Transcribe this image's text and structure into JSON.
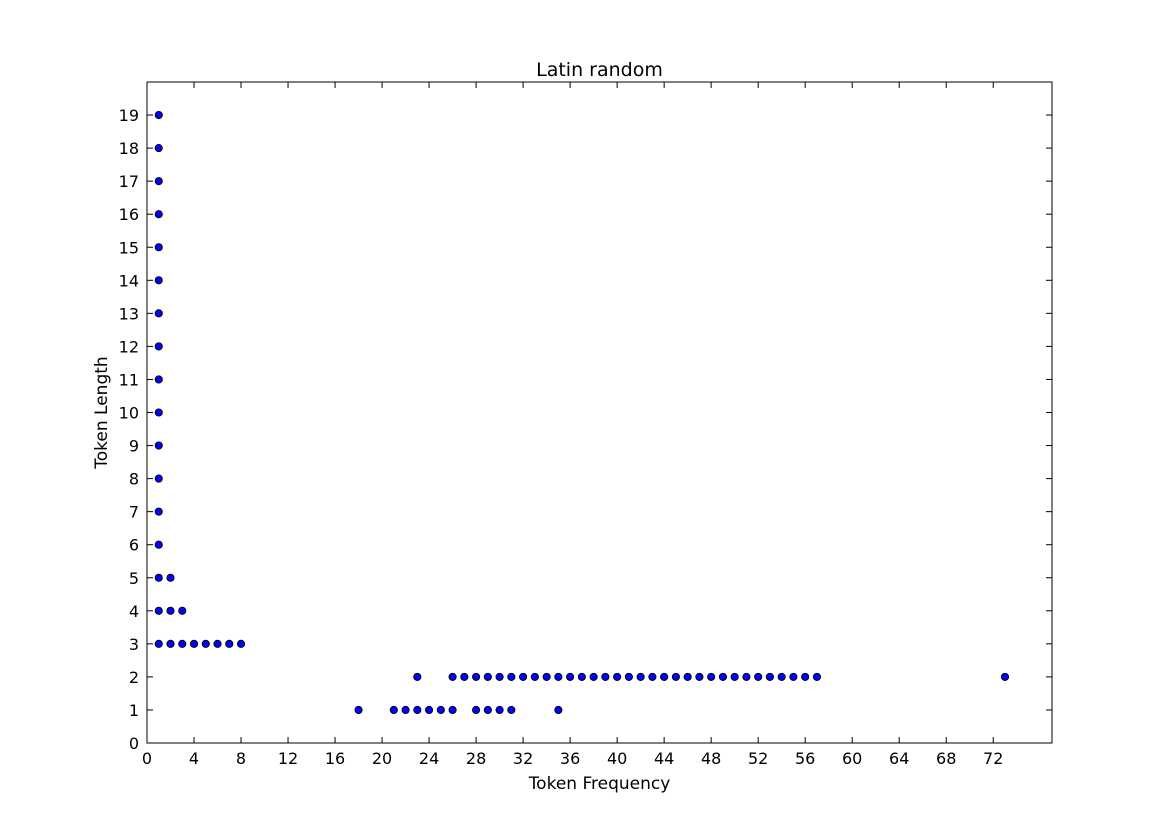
{
  "chart_data": {
    "type": "scatter",
    "title": "Latin random",
    "xlabel": "Token Frequency",
    "ylabel": "Token Length",
    "xlim": [
      0,
      77
    ],
    "ylim": [
      0,
      20
    ],
    "xticks": [
      0,
      4,
      8,
      12,
      16,
      20,
      24,
      28,
      32,
      36,
      40,
      44,
      48,
      52,
      56,
      60,
      64,
      68,
      72
    ],
    "xtick_labels": [
      "0",
      "4",
      "8",
      "12",
      "16",
      "20",
      "24",
      "28",
      "32",
      "36",
      "40",
      "44",
      "48",
      "52",
      "56",
      "60",
      "64",
      "68",
      "72"
    ],
    "yticks": [
      0,
      1,
      2,
      3,
      4,
      5,
      6,
      7,
      8,
      9,
      10,
      11,
      12,
      13,
      14,
      15,
      16,
      17,
      18,
      19
    ],
    "ytick_labels": [
      "0",
      "1",
      "2",
      "3",
      "4",
      "5",
      "6",
      "7",
      "8",
      "9",
      "10",
      "11",
      "12",
      "13",
      "14",
      "15",
      "16",
      "17",
      "18",
      "19"
    ],
    "grid": false,
    "marker_color": "#0000ff",
    "marker_edge_color": "#000000",
    "points": [
      {
        "x": 1,
        "y": 19
      },
      {
        "x": 1,
        "y": 18
      },
      {
        "x": 1,
        "y": 17
      },
      {
        "x": 1,
        "y": 16
      },
      {
        "x": 1,
        "y": 15
      },
      {
        "x": 1,
        "y": 14
      },
      {
        "x": 1,
        "y": 13
      },
      {
        "x": 1,
        "y": 12
      },
      {
        "x": 1,
        "y": 11
      },
      {
        "x": 1,
        "y": 10
      },
      {
        "x": 1,
        "y": 9
      },
      {
        "x": 1,
        "y": 8
      },
      {
        "x": 1,
        "y": 7
      },
      {
        "x": 1,
        "y": 6
      },
      {
        "x": 1,
        "y": 5
      },
      {
        "x": 2,
        "y": 5
      },
      {
        "x": 1,
        "y": 4
      },
      {
        "x": 2,
        "y": 4
      },
      {
        "x": 3,
        "y": 4
      },
      {
        "x": 1,
        "y": 3
      },
      {
        "x": 2,
        "y": 3
      },
      {
        "x": 3,
        "y": 3
      },
      {
        "x": 4,
        "y": 3
      },
      {
        "x": 5,
        "y": 3
      },
      {
        "x": 6,
        "y": 3
      },
      {
        "x": 7,
        "y": 3
      },
      {
        "x": 8,
        "y": 3
      },
      {
        "x": 23,
        "y": 2
      },
      {
        "x": 26,
        "y": 2
      },
      {
        "x": 27,
        "y": 2
      },
      {
        "x": 28,
        "y": 2
      },
      {
        "x": 29,
        "y": 2
      },
      {
        "x": 30,
        "y": 2
      },
      {
        "x": 31,
        "y": 2
      },
      {
        "x": 32,
        "y": 2
      },
      {
        "x": 33,
        "y": 2
      },
      {
        "x": 34,
        "y": 2
      },
      {
        "x": 35,
        "y": 2
      },
      {
        "x": 36,
        "y": 2
      },
      {
        "x": 37,
        "y": 2
      },
      {
        "x": 38,
        "y": 2
      },
      {
        "x": 39,
        "y": 2
      },
      {
        "x": 40,
        "y": 2
      },
      {
        "x": 41,
        "y": 2
      },
      {
        "x": 42,
        "y": 2
      },
      {
        "x": 43,
        "y": 2
      },
      {
        "x": 44,
        "y": 2
      },
      {
        "x": 45,
        "y": 2
      },
      {
        "x": 46,
        "y": 2
      },
      {
        "x": 47,
        "y": 2
      },
      {
        "x": 48,
        "y": 2
      },
      {
        "x": 49,
        "y": 2
      },
      {
        "x": 50,
        "y": 2
      },
      {
        "x": 51,
        "y": 2
      },
      {
        "x": 52,
        "y": 2
      },
      {
        "x": 53,
        "y": 2
      },
      {
        "x": 54,
        "y": 2
      },
      {
        "x": 55,
        "y": 2
      },
      {
        "x": 56,
        "y": 2
      },
      {
        "x": 57,
        "y": 2
      },
      {
        "x": 73,
        "y": 2
      },
      {
        "x": 18,
        "y": 1
      },
      {
        "x": 21,
        "y": 1
      },
      {
        "x": 22,
        "y": 1
      },
      {
        "x": 23,
        "y": 1
      },
      {
        "x": 24,
        "y": 1
      },
      {
        "x": 25,
        "y": 1
      },
      {
        "x": 26,
        "y": 1
      },
      {
        "x": 28,
        "y": 1
      },
      {
        "x": 29,
        "y": 1
      },
      {
        "x": 30,
        "y": 1
      },
      {
        "x": 31,
        "y": 1
      },
      {
        "x": 35,
        "y": 1
      }
    ]
  }
}
